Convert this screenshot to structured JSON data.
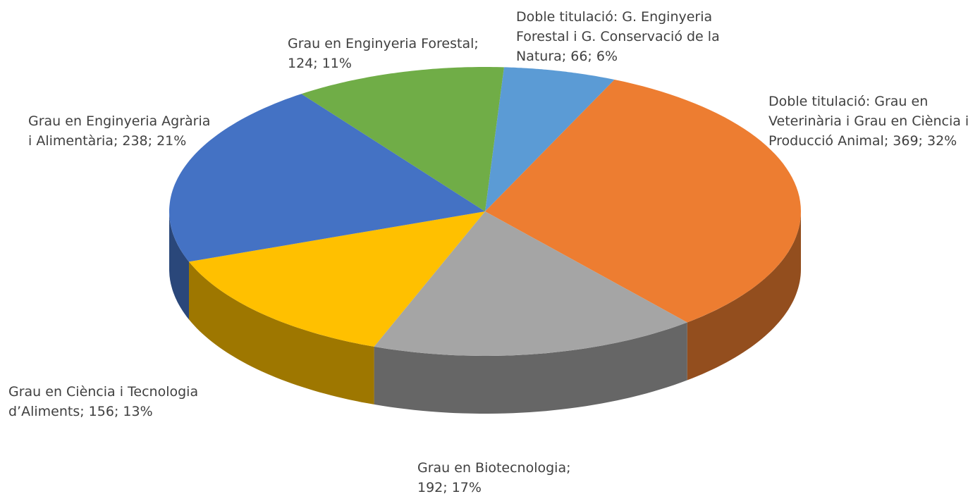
{
  "chart_data": {
    "type": "pie3d",
    "values": [
      66,
      369,
      192,
      156,
      238,
      124
    ],
    "value_labels": [
      [
        "Doble titulació: G. Enginyeria",
        "Forestal i G. Conservació de la",
        "Natura; 66; 6%"
      ],
      [
        "Doble titulació: Grau en",
        "Veterinària i Grau en Ciència i",
        "Producció Animal; 369; 32%"
      ],
      [
        "Grau en Biotecnologia;",
        "192; 17%"
      ],
      [
        "Grau en Ciència i Tecnologia",
        "d’Aliments; 156; 13%"
      ],
      [
        "Grau en Enginyeria Agrària",
        "i Alimentària; 238; 21%"
      ],
      [
        "Grau en Enginyeria Forestal;",
        "124; 11%"
      ]
    ],
    "colors": [
      "#5b9bd5",
      "#ed7d31",
      "#a5a5a5",
      "#ffc000",
      "#4472c4",
      "#70ad47"
    ]
  }
}
